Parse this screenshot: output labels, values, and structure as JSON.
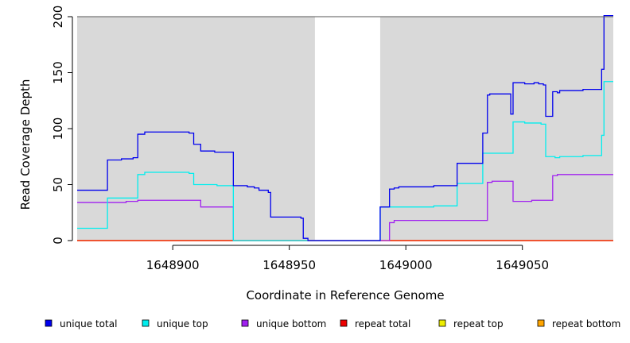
{
  "chart_data": {
    "type": "line",
    "title": "",
    "xlabel": "Coordinate in Reference Genome",
    "ylabel": "Read Coverage Depth",
    "xlim": [
      1648859,
      1649089
    ],
    "ylim": [
      0,
      200
    ],
    "x_ticks": [
      1648900,
      1648950,
      1649000,
      1649050
    ],
    "y_ticks": [
      0,
      50,
      100,
      150,
      200
    ],
    "shaded_regions": [
      {
        "x0": 1648859,
        "x1": 1648961,
        "color": "#d9d9d9"
      },
      {
        "x0": 1648989,
        "x1": 1649089,
        "color": "#d9d9d9"
      }
    ],
    "legend_position": "bottom",
    "series": [
      {
        "name": "unique total",
        "color": "#0000ee",
        "points": [
          [
            1648859,
            45
          ],
          [
            1648872,
            45
          ],
          [
            1648872,
            72
          ],
          [
            1648878,
            72
          ],
          [
            1648878,
            73
          ],
          [
            1648883,
            73
          ],
          [
            1648883,
            74
          ],
          [
            1648885,
            74
          ],
          [
            1648885,
            95
          ],
          [
            1648888,
            95
          ],
          [
            1648888,
            97
          ],
          [
            1648907,
            97
          ],
          [
            1648907,
            96
          ],
          [
            1648909,
            96
          ],
          [
            1648909,
            86
          ],
          [
            1648912,
            86
          ],
          [
            1648912,
            80
          ],
          [
            1648918,
            80
          ],
          [
            1648918,
            79
          ],
          [
            1648926,
            79
          ],
          [
            1648926,
            49
          ],
          [
            1648932,
            49
          ],
          [
            1648932,
            48
          ],
          [
            1648935,
            48
          ],
          [
            1648935,
            47
          ],
          [
            1648937,
            47
          ],
          [
            1648937,
            45
          ],
          [
            1648941,
            45
          ],
          [
            1648941,
            43
          ],
          [
            1648942,
            43
          ],
          [
            1648942,
            21
          ],
          [
            1648955,
            21
          ],
          [
            1648955,
            20
          ],
          [
            1648956,
            20
          ],
          [
            1648956,
            2
          ],
          [
            1648958,
            2
          ],
          [
            1648958,
            0
          ],
          [
            1648989,
            0
          ],
          [
            1648989,
            30
          ],
          [
            1648993,
            30
          ],
          [
            1648993,
            46
          ],
          [
            1648995,
            46
          ],
          [
            1648995,
            47
          ],
          [
            1648997,
            47
          ],
          [
            1648997,
            48
          ],
          [
            1649012,
            48
          ],
          [
            1649012,
            49
          ],
          [
            1649022,
            49
          ],
          [
            1649022,
            69
          ],
          [
            1649033,
            69
          ],
          [
            1649033,
            96
          ],
          [
            1649035,
            96
          ],
          [
            1649035,
            130
          ],
          [
            1649036,
            130
          ],
          [
            1649036,
            131
          ],
          [
            1649045,
            131
          ],
          [
            1649045,
            113
          ],
          [
            1649046,
            113
          ],
          [
            1649046,
            141
          ],
          [
            1649051,
            141
          ],
          [
            1649051,
            140
          ],
          [
            1649055,
            140
          ],
          [
            1649055,
            141
          ],
          [
            1649057,
            141
          ],
          [
            1649057,
            140
          ],
          [
            1649059,
            140
          ],
          [
            1649059,
            139
          ],
          [
            1649060,
            139
          ],
          [
            1649060,
            111
          ],
          [
            1649063,
            111
          ],
          [
            1649063,
            133
          ],
          [
            1649065,
            133
          ],
          [
            1649065,
            132
          ],
          [
            1649066,
            132
          ],
          [
            1649066,
            134
          ],
          [
            1649076,
            134
          ],
          [
            1649076,
            135
          ],
          [
            1649084,
            135
          ],
          [
            1649084,
            153
          ],
          [
            1649085,
            153
          ],
          [
            1649085,
            201
          ],
          [
            1649089,
            201
          ]
        ]
      },
      {
        "name": "unique top",
        "color": "#00eeee",
        "points": [
          [
            1648859,
            11
          ],
          [
            1648872,
            11
          ],
          [
            1648872,
            38
          ],
          [
            1648885,
            38
          ],
          [
            1648885,
            59
          ],
          [
            1648888,
            59
          ],
          [
            1648888,
            61
          ],
          [
            1648907,
            61
          ],
          [
            1648907,
            60
          ],
          [
            1648909,
            60
          ],
          [
            1648909,
            50
          ],
          [
            1648919,
            50
          ],
          [
            1648919,
            49
          ],
          [
            1648926,
            49
          ],
          [
            1648926,
            0
          ],
          [
            1648989,
            0
          ],
          [
            1648989,
            30
          ],
          [
            1649012,
            30
          ],
          [
            1649012,
            31
          ],
          [
            1649022,
            31
          ],
          [
            1649022,
            51
          ],
          [
            1649033,
            51
          ],
          [
            1649033,
            78
          ],
          [
            1649046,
            78
          ],
          [
            1649046,
            106
          ],
          [
            1649051,
            106
          ],
          [
            1649051,
            105
          ],
          [
            1649058,
            105
          ],
          [
            1649058,
            104
          ],
          [
            1649060,
            104
          ],
          [
            1649060,
            75
          ],
          [
            1649064,
            75
          ],
          [
            1649064,
            74
          ],
          [
            1649066,
            74
          ],
          [
            1649066,
            75
          ],
          [
            1649076,
            75
          ],
          [
            1649076,
            76
          ],
          [
            1649084,
            76
          ],
          [
            1649084,
            94
          ],
          [
            1649085,
            94
          ],
          [
            1649085,
            142
          ],
          [
            1649089,
            142
          ]
        ]
      },
      {
        "name": "unique bottom",
        "color": "#a020f0",
        "points": [
          [
            1648859,
            34
          ],
          [
            1648880,
            34
          ],
          [
            1648880,
            35
          ],
          [
            1648885,
            35
          ],
          [
            1648885,
            36
          ],
          [
            1648912,
            36
          ],
          [
            1648912,
            30
          ],
          [
            1648926,
            30
          ],
          [
            1648926,
            0
          ],
          [
            1648993,
            0
          ],
          [
            1648993,
            16
          ],
          [
            1648995,
            16
          ],
          [
            1648995,
            18
          ],
          [
            1649035,
            18
          ],
          [
            1649035,
            52
          ],
          [
            1649037,
            52
          ],
          [
            1649037,
            53
          ],
          [
            1649046,
            53
          ],
          [
            1649046,
            35
          ],
          [
            1649054,
            35
          ],
          [
            1649054,
            36
          ],
          [
            1649063,
            36
          ],
          [
            1649063,
            58
          ],
          [
            1649065,
            58
          ],
          [
            1649065,
            59
          ],
          [
            1649089,
            59
          ]
        ]
      },
      {
        "name": "repeat total",
        "color": "#ee0000",
        "points": [
          [
            1648859,
            0
          ],
          [
            1649089,
            0
          ]
        ]
      },
      {
        "name": "repeat top",
        "color": "#eeee00",
        "points": [
          [
            1648859,
            0
          ],
          [
            1649089,
            0
          ]
        ]
      },
      {
        "name": "repeat bottom",
        "color": "#ffa500",
        "points": [
          [
            1648859,
            0
          ],
          [
            1649089,
            0
          ]
        ]
      }
    ]
  }
}
